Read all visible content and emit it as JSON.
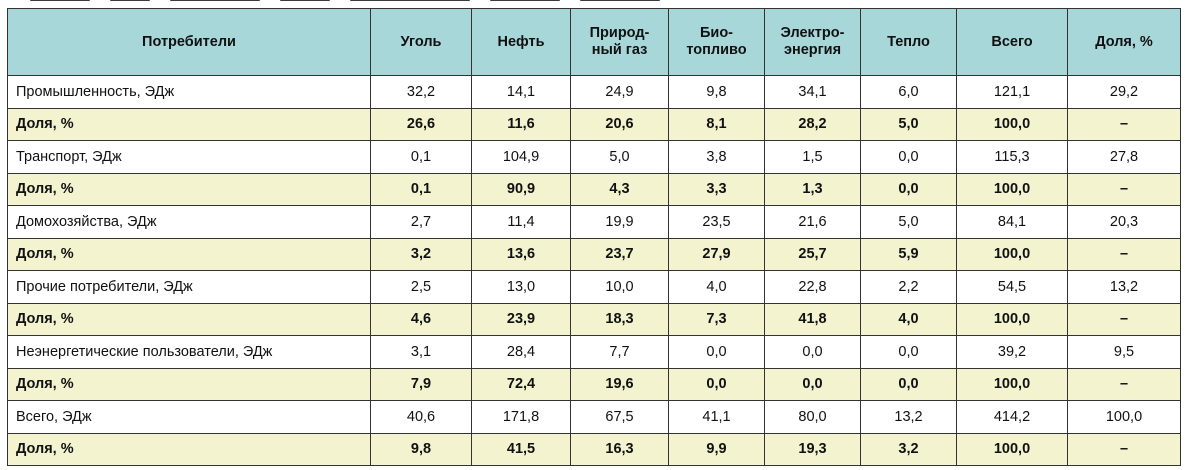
{
  "headers": [
    [
      "Потребители"
    ],
    [
      "Уголь"
    ],
    [
      "Нефть"
    ],
    [
      "Природ-",
      "ный газ"
    ],
    [
      "Био-",
      "топливо"
    ],
    [
      "Электро-",
      "энергия"
    ],
    [
      "Тепло"
    ],
    [
      "Всего"
    ],
    [
      "Доля, %"
    ]
  ],
  "rows": [
    {
      "type": "data",
      "cells": [
        "Промышленность, ЭДж",
        "32,2",
        "14,1",
        "24,9",
        "9,8",
        "34,1",
        "6,0",
        "121,1",
        "29,2"
      ]
    },
    {
      "type": "share",
      "cells": [
        "Доля, %",
        "26,6",
        "11,6",
        "20,6",
        "8,1",
        "28,2",
        "5,0",
        "100,0",
        "–"
      ]
    },
    {
      "type": "data",
      "cells": [
        "Транспорт, ЭДж",
        "0,1",
        "104,9",
        "5,0",
        "3,8",
        "1,5",
        "0,0",
        "115,3",
        "27,8"
      ]
    },
    {
      "type": "share",
      "cells": [
        "Доля, %",
        "0,1",
        "90,9",
        "4,3",
        "3,3",
        "1,3",
        "0,0",
        "100,0",
        "–"
      ]
    },
    {
      "type": "data",
      "cells": [
        "Домохозяйства, ЭДж",
        "2,7",
        "11,4",
        "19,9",
        "23,5",
        "21,6",
        "5,0",
        "84,1",
        "20,3"
      ]
    },
    {
      "type": "share",
      "cells": [
        "Доля, %",
        "3,2",
        "13,6",
        "23,7",
        "27,9",
        "25,7",
        "5,9",
        "100,0",
        "–"
      ]
    },
    {
      "type": "data",
      "cells": [
        "Прочие потребители, ЭДж",
        "2,5",
        "13,0",
        "10,0",
        "4,0",
        "22,8",
        "2,2",
        "54,5",
        "13,2"
      ]
    },
    {
      "type": "share",
      "cells": [
        "Доля, %",
        "4,6",
        "23,9",
        "18,3",
        "7,3",
        "41,8",
        "4,0",
        "100,0",
        "–"
      ]
    },
    {
      "type": "data",
      "cells": [
        "Неэнергетические пользователи, ЭДж",
        "3,1",
        "28,4",
        "7,7",
        "0,0",
        "0,0",
        "0,0",
        "39,2",
        "9,5"
      ]
    },
    {
      "type": "share",
      "cells": [
        "Доля, %",
        "7,9",
        "72,4",
        "19,6",
        "0,0",
        "0,0",
        "0,0",
        "100,0",
        "–"
      ]
    },
    {
      "type": "data",
      "cells": [
        "Всего, ЭДж",
        "40,6",
        "171,8",
        "67,5",
        "41,1",
        "80,0",
        "13,2",
        "414,2",
        "100,0"
      ]
    },
    {
      "type": "share",
      "cells": [
        "Доля, %",
        "9,8",
        "41,5",
        "16,3",
        "9,9",
        "19,3",
        "3,2",
        "100,0",
        "–"
      ]
    }
  ],
  "colors": {
    "header_bg": "#a7d7d9",
    "share_row_bg": "#f4f3d0",
    "border": "#333333"
  }
}
